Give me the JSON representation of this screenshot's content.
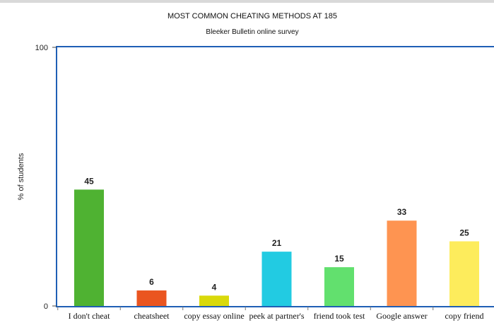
{
  "chart_data": {
    "type": "bar",
    "title": "MOST COMMON CHEATING METHODS AT 185",
    "subtitle": "Bleeker Bulletin online survey",
    "xlabel": "",
    "ylabel": "% of students",
    "ylim": [
      0,
      100
    ],
    "yticks": [
      "0",
      "100"
    ],
    "categories": [
      "I don't cheat",
      "cheatsheet",
      "copy essay online",
      "peek at partner's",
      "friend took test",
      "Google answer",
      "copy friend"
    ],
    "values": [
      45,
      6,
      4,
      21,
      15,
      33,
      25
    ],
    "colors": [
      "#4fb232",
      "#ea5520",
      "#d9d90a",
      "#22cbe2",
      "#62e06e",
      "#fe9451",
      "#fdec5c"
    ],
    "grid": false,
    "legend": "none",
    "frame_color": "#1f5fb5"
  }
}
